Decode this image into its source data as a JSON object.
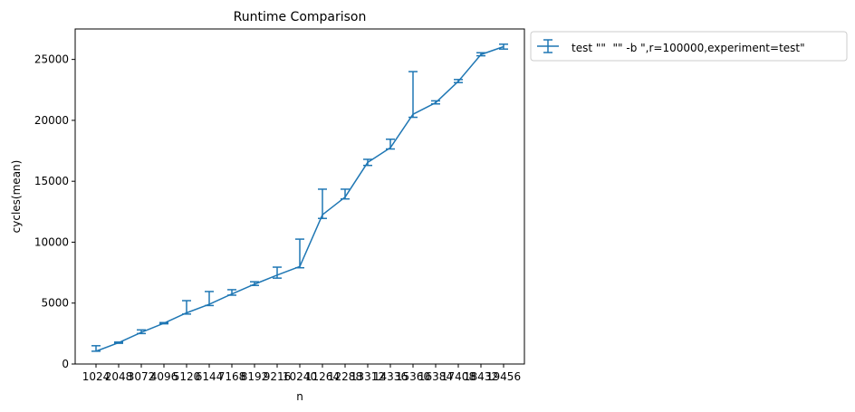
{
  "chart_data": {
    "type": "line",
    "title": "Runtime Comparison",
    "xlabel": "n",
    "ylabel": "cycles(mean)",
    "categories": [
      "1024",
      "2048",
      "3072",
      "4096",
      "5120",
      "6144",
      "7168",
      "8192",
      "9216",
      "10240",
      "11264",
      "12288",
      "13312",
      "14336",
      "15360",
      "16384",
      "17408",
      "18432",
      "19456"
    ],
    "ylim": [
      0,
      27500
    ],
    "yticks": [
      0,
      5000,
      10000,
      15000,
      20000,
      25000
    ],
    "ytick_labels": [
      "0",
      "5000",
      "10000",
      "15000",
      "20000",
      "25000"
    ],
    "grid": false,
    "legend": "outside-top-right",
    "color": "#1f77b4",
    "series": [
      {
        "name": "test \"\"  \"\" -b \",r=100000,experiment=test\"",
        "values": [
          1050,
          1750,
          2600,
          3350,
          4200,
          4900,
          5750,
          6550,
          7300,
          8000,
          12250,
          13700,
          16550,
          17750,
          20500,
          21450,
          23200,
          25400,
          26050
        ],
        "err_low": [
          1050,
          1700,
          2500,
          3300,
          4100,
          4800,
          5650,
          6450,
          7050,
          7900,
          11950,
          13550,
          16300,
          17650,
          20250,
          21350,
          23100,
          25300,
          25850
        ],
        "err_high": [
          1500,
          1800,
          2800,
          3400,
          5200,
          5950,
          6100,
          6750,
          7950,
          10250,
          14350,
          14350,
          16800,
          18450,
          24000,
          21600,
          23350,
          25550,
          26250
        ]
      }
    ]
  }
}
